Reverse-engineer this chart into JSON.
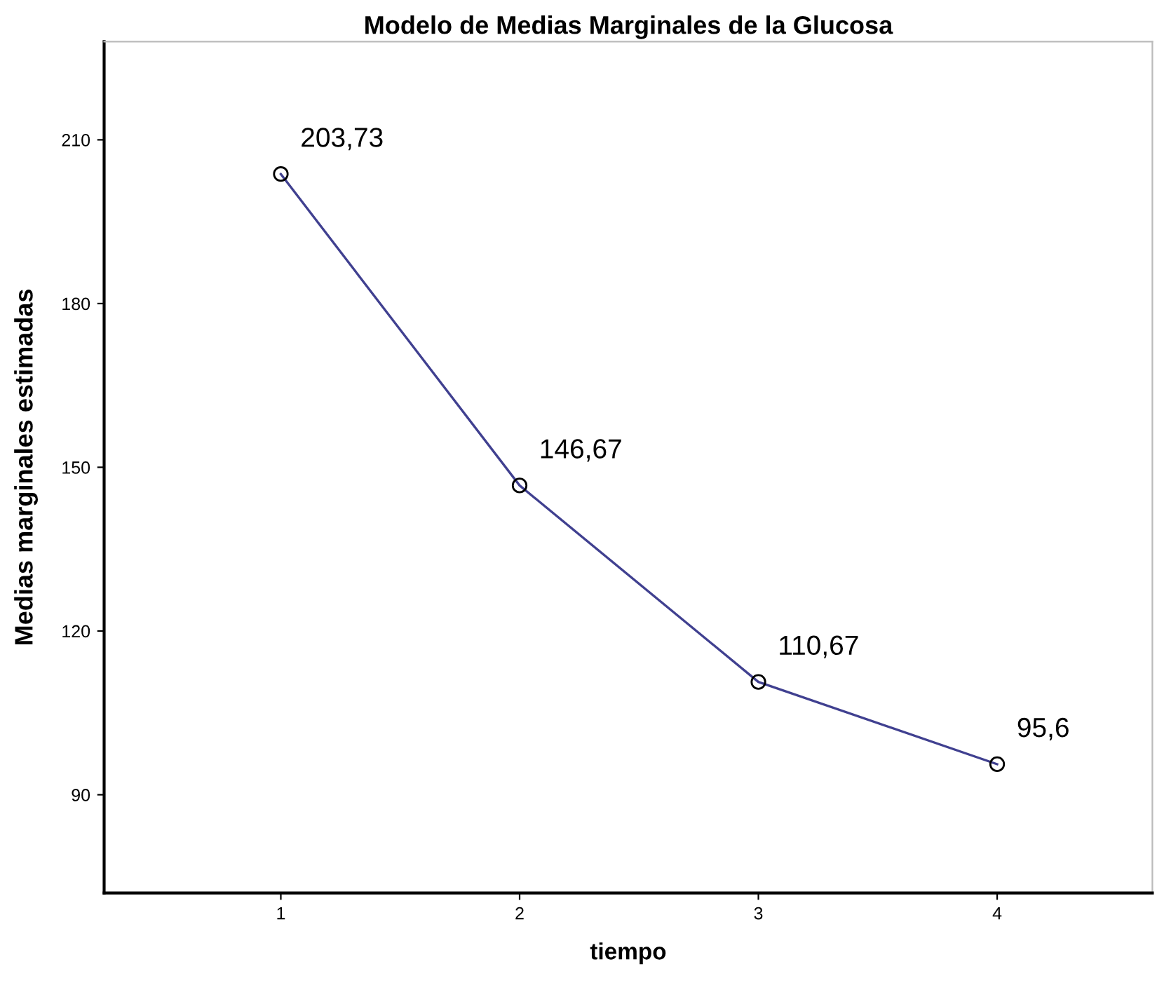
{
  "chart_data": {
    "type": "line",
    "title": "Modelo de Medias Marginales de la Glucosa",
    "xlabel": "tiempo",
    "ylabel": "Medias marginales estimadas",
    "x": [
      1,
      2,
      3,
      4
    ],
    "series": [
      {
        "color": "#404090",
        "values": [
          203.73,
          146.67,
          110.67,
          95.6
        ],
        "value_labels": [
          "203,73",
          "146,67",
          "110,67",
          "95,6"
        ]
      }
    ],
    "xlim": [
      0.26,
      4.65
    ],
    "xticks": [
      1,
      2,
      3,
      4
    ],
    "ylim": [
      72,
      228
    ],
    "yticks": [
      90,
      120,
      150,
      180,
      210
    ],
    "marker": "circle",
    "line_style": "solid",
    "grid": false,
    "legend": false
  }
}
